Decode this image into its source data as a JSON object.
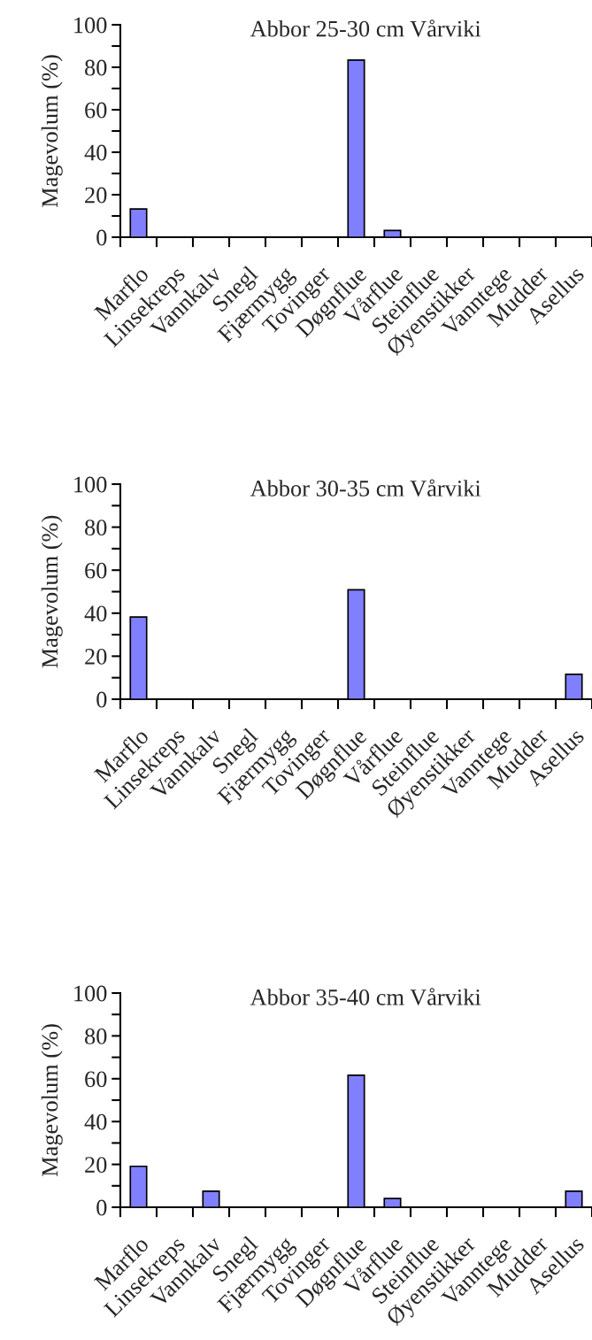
{
  "chart_data": [
    {
      "type": "bar",
      "title": "Abbor 25-30 cm Vårviki",
      "ylabel": "Magevolum (%)",
      "categories": [
        "Marflo",
        "Linsekreps",
        "Vannkalv",
        "Snegl",
        "Fjærmygg",
        "Tovinger",
        "Døgnflue",
        "Vårflue",
        "Steinflue",
        "Øyenstikker",
        "Vanntege",
        "Mudder",
        "Asellus"
      ],
      "values": [
        13.3,
        0,
        0,
        0,
        0,
        0,
        83.4,
        3.2,
        0,
        0,
        0,
        0,
        0
      ],
      "color": "#8080ff",
      "ylim": [
        0,
        100
      ],
      "yticks": [
        0,
        {
          "value": 10,
          "label": null
        },
        20,
        {
          "value": 30,
          "label": null
        },
        40,
        {
          "value": 50,
          "label": null
        },
        60,
        {
          "value": 70,
          "label": null
        },
        80,
        {
          "value": 90,
          "label": null
        },
        100
      ],
      "grid": false,
      "legend": false
    },
    {
      "type": "bar",
      "title": "Abbor 30-35 cm Vårviki",
      "ylabel": "Magevolum (%)",
      "categories": [
        "Marflo",
        "Linsekreps",
        "Vannkalv",
        "Snegl",
        "Fjærmygg",
        "Tovinger",
        "Døgnflue",
        "Vårflue",
        "Steinflue",
        "Øyenstikker",
        "Vanntege",
        "Mudder",
        "Asellus"
      ],
      "values": [
        38.2,
        0,
        0,
        0,
        0,
        0,
        50.9,
        0,
        0,
        0,
        0,
        0,
        11.6
      ],
      "color": "#8080ff",
      "ylim": [
        0,
        100
      ],
      "yticks": [
        0,
        {
          "value": 10,
          "label": null
        },
        20,
        {
          "value": 30,
          "label": null
        },
        40,
        {
          "value": 50,
          "label": null
        },
        60,
        {
          "value": 70,
          "label": null
        },
        80,
        {
          "value": 90,
          "label": null
        },
        100
      ],
      "grid": false,
      "legend": false
    },
    {
      "type": "bar",
      "title": "Abbor 35-40 cm Vårviki",
      "ylabel": "Magevolum (%)",
      "categories": [
        "Marflo",
        "Linsekreps",
        "Vannkalv",
        "Snegl",
        "Fjærmygg",
        "Tovinger",
        "Døgnflue",
        "Vårflue",
        "Steinflue",
        "Øyenstikker",
        "Vanntege",
        "Mudder",
        "Asellus"
      ],
      "values": [
        19.1,
        0,
        7.5,
        0,
        0,
        0,
        61.6,
        4.1,
        0,
        0,
        0,
        0,
        7.5
      ],
      "color": "#8080ff",
      "ylim": [
        0,
        100
      ],
      "yticks": [
        0,
        {
          "value": 10,
          "label": null
        },
        20,
        {
          "value": 30,
          "label": null
        },
        40,
        {
          "value": 50,
          "label": null
        },
        60,
        {
          "value": 70,
          "label": null
        },
        80,
        {
          "value": 90,
          "label": null
        },
        100
      ],
      "grid": false,
      "legend": false
    }
  ]
}
